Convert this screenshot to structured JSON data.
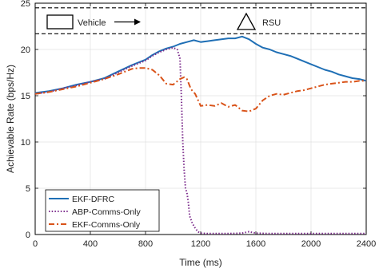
{
  "chart_data": {
    "type": "line",
    "xlabel": "Time (ms)",
    "ylabel": "Achievable Rate (bps/Hz)",
    "xlim": [
      0,
      2400
    ],
    "ylim": [
      0,
      25
    ],
    "xticks": [
      0,
      400,
      800,
      1200,
      1600,
      2000,
      2400
    ],
    "yticks": [
      0,
      5,
      10,
      15,
      20,
      25
    ],
    "grid": true,
    "legend_position": "bottom-left",
    "annotations": {
      "vehicle_label": "Vehicle",
      "rsu_label": "RSU",
      "road_lines_y": [
        24.5,
        21.7
      ]
    },
    "series": [
      {
        "name": "EKF-DFRC",
        "color": "#1f6fb5",
        "style": "solid",
        "x": [
          0,
          100,
          200,
          300,
          400,
          500,
          600,
          700,
          800,
          850,
          900,
          950,
          1000,
          1050,
          1100,
          1150,
          1200,
          1250,
          1300,
          1350,
          1400,
          1450,
          1500,
          1550,
          1600,
          1650,
          1700,
          1750,
          1800,
          1850,
          1900,
          1950,
          2000,
          2050,
          2100,
          2150,
          2200,
          2250,
          2300,
          2350,
          2400
        ],
        "values": [
          15.3,
          15.5,
          15.8,
          16.2,
          16.5,
          16.9,
          17.6,
          18.3,
          18.9,
          19.4,
          19.8,
          20.1,
          20.3,
          20.6,
          20.8,
          21.0,
          20.8,
          20.9,
          21.0,
          21.1,
          21.2,
          21.2,
          21.4,
          21.1,
          20.6,
          20.2,
          20.0,
          19.7,
          19.5,
          19.3,
          19.0,
          18.7,
          18.4,
          18.1,
          17.8,
          17.6,
          17.3,
          17.1,
          16.9,
          16.8,
          16.6
        ]
      },
      {
        "name": "ABP-Comms-Only",
        "color": "#7e2f8e",
        "style": "dotted",
        "x": [
          0,
          100,
          200,
          300,
          400,
          500,
          600,
          700,
          800,
          850,
          900,
          950,
          1000,
          1030,
          1050,
          1060,
          1070,
          1080,
          1090,
          1100,
          1110,
          1120,
          1140,
          1160,
          1180,
          1200,
          1250,
          1300,
          1400,
          1500,
          1550,
          1600,
          1700,
          1800,
          2000,
          2200,
          2400
        ],
        "values": [
          15.2,
          15.4,
          15.8,
          16.1,
          16.5,
          16.8,
          17.5,
          18.2,
          18.8,
          19.3,
          19.7,
          20.0,
          20.2,
          20.0,
          19.0,
          15.0,
          10.0,
          7.0,
          5.0,
          4.5,
          3.5,
          2.0,
          1.2,
          0.7,
          0.3,
          0.15,
          0.1,
          0.1,
          0.1,
          0.15,
          0.3,
          0.15,
          0.1,
          0.1,
          0.1,
          0.1,
          0.1
        ]
      },
      {
        "name": "EKF-Comms-Only",
        "color": "#d95319",
        "style": "dashdot",
        "x": [
          0,
          100,
          200,
          300,
          400,
          500,
          600,
          700,
          750,
          800,
          850,
          900,
          950,
          1000,
          1050,
          1080,
          1100,
          1130,
          1160,
          1200,
          1250,
          1300,
          1350,
          1400,
          1450,
          1500,
          1550,
          1600,
          1650,
          1700,
          1750,
          1800,
          1850,
          1900,
          1950,
          2000,
          2050,
          2100,
          2150,
          2200,
          2250,
          2300,
          2350,
          2400
        ],
        "values": [
          15.2,
          15.4,
          15.7,
          16.0,
          16.4,
          16.8,
          17.3,
          17.9,
          18.0,
          18.0,
          17.8,
          17.2,
          16.3,
          16.2,
          16.8,
          17.0,
          16.8,
          15.7,
          15.2,
          13.9,
          14.0,
          13.9,
          14.2,
          13.8,
          14.0,
          13.4,
          13.3,
          13.6,
          14.5,
          15.0,
          15.2,
          15.1,
          15.3,
          15.5,
          15.6,
          15.8,
          16.0,
          16.2,
          16.3,
          16.4,
          16.5,
          16.5,
          16.6,
          16.6
        ]
      }
    ]
  }
}
